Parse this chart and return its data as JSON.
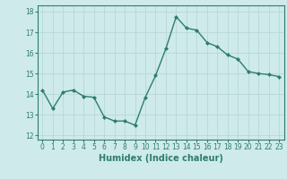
{
  "x": [
    0,
    1,
    2,
    3,
    4,
    5,
    6,
    7,
    8,
    9,
    10,
    11,
    12,
    13,
    14,
    15,
    16,
    17,
    18,
    19,
    20,
    21,
    22,
    23
  ],
  "y": [
    14.2,
    13.3,
    14.1,
    14.2,
    13.9,
    13.85,
    12.9,
    12.7,
    12.7,
    12.5,
    13.85,
    14.9,
    16.2,
    17.75,
    17.2,
    17.1,
    16.5,
    16.3,
    15.9,
    15.7,
    15.1,
    15.0,
    14.95,
    14.85
  ],
  "line_color": "#2e7d6e",
  "marker": "D",
  "marker_size": 2.0,
  "linewidth": 1.0,
  "xlabel": "Humidex (Indice chaleur)",
  "xlabel_fontsize": 7,
  "ylim": [
    11.8,
    18.3
  ],
  "xlim": [
    -0.5,
    23.5
  ],
  "yticks": [
    12,
    13,
    14,
    15,
    16,
    17,
    18
  ],
  "xticks": [
    0,
    1,
    2,
    3,
    4,
    5,
    6,
    7,
    8,
    9,
    10,
    11,
    12,
    13,
    14,
    15,
    16,
    17,
    18,
    19,
    20,
    21,
    22,
    23
  ],
  "bg_color": "#ceeaea",
  "grid_color": "#b8d8d8",
  "tick_fontsize": 5.5,
  "spine_color": "#2e7d6e"
}
